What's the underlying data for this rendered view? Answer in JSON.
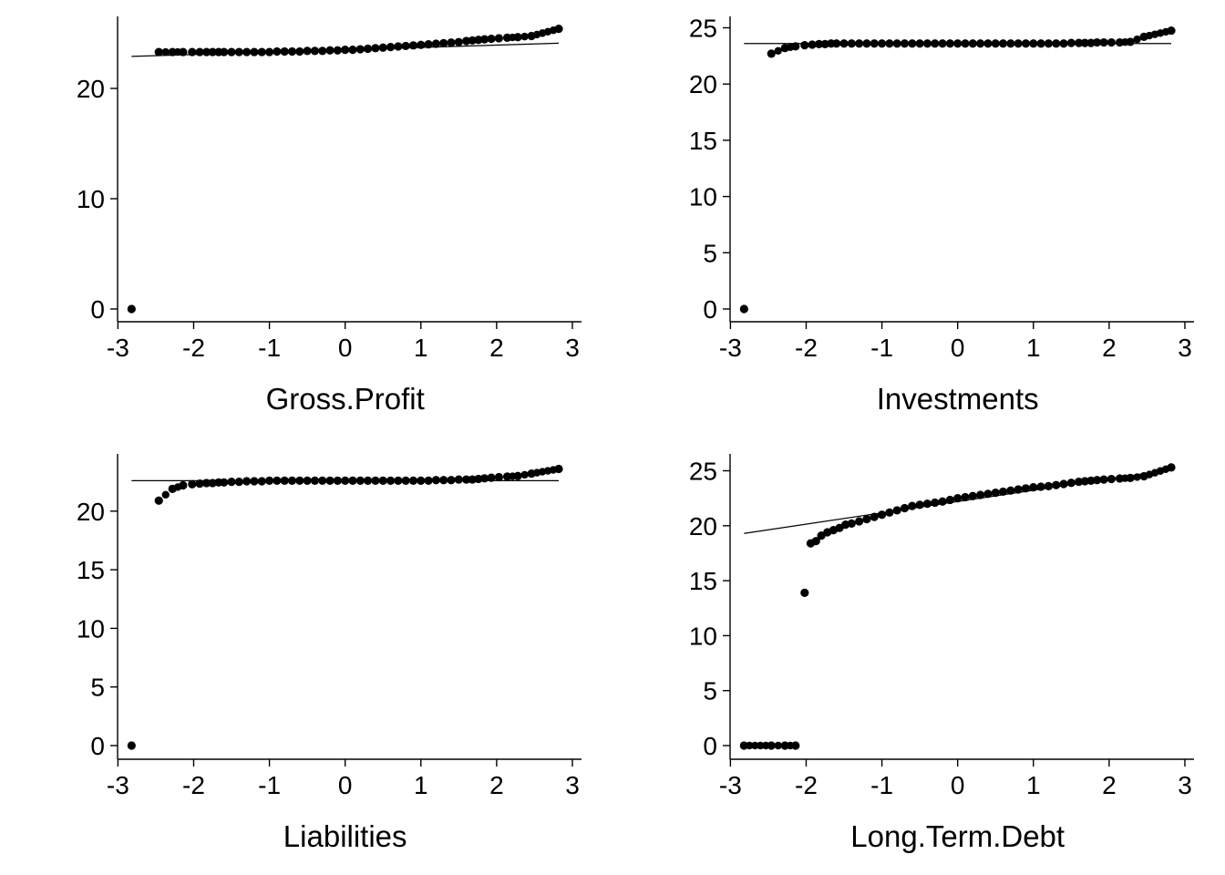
{
  "chart_data": [
    {
      "type": "scatter",
      "xlabel": "Gross.Profit",
      "ylabel": "",
      "xlim": [
        -2.95,
        3.0
      ],
      "ylim": [
        -1.2,
        26.8
      ],
      "xticks": [
        "-3",
        "-2",
        "-1",
        "0",
        "1",
        "2",
        "3"
      ],
      "yticks": [
        "0",
        "10",
        "20"
      ],
      "xtick_values": [
        -3,
        -2,
        -1,
        0,
        1,
        2,
        3
      ],
      "ytick_values": [
        0,
        10,
        20
      ],
      "reference_line": [
        [
          -2.82,
          22.9
        ],
        [
          2.82,
          24.1
        ]
      ],
      "points": [
        [
          -2.82,
          0.0
        ],
        [
          -2.46,
          23.3
        ],
        [
          -2.28,
          23.3
        ],
        [
          -2.14,
          23.3
        ],
        [
          -2.02,
          23.3
        ],
        [
          -1.92,
          23.3
        ],
        [
          -1.83,
          23.3
        ],
        [
          -1.75,
          23.3
        ],
        [
          -1.67,
          23.3
        ],
        [
          -1.6,
          23.3
        ],
        [
          -1.5,
          23.3
        ],
        [
          -1.4,
          23.3
        ],
        [
          -1.3,
          23.3
        ],
        [
          -1.2,
          23.3
        ],
        [
          -1.1,
          23.3
        ],
        [
          -1.0,
          23.3
        ],
        [
          -0.9,
          23.35
        ],
        [
          -0.8,
          23.35
        ],
        [
          -0.7,
          23.35
        ],
        [
          -0.6,
          23.35
        ],
        [
          -0.5,
          23.4
        ],
        [
          -0.4,
          23.4
        ],
        [
          -0.3,
          23.4
        ],
        [
          -0.2,
          23.45
        ],
        [
          -0.1,
          23.45
        ],
        [
          0.0,
          23.5
        ],
        [
          0.1,
          23.5
        ],
        [
          0.2,
          23.55
        ],
        [
          0.3,
          23.6
        ],
        [
          0.4,
          23.65
        ],
        [
          0.5,
          23.7
        ],
        [
          0.6,
          23.75
        ],
        [
          0.7,
          23.8
        ],
        [
          0.8,
          23.85
        ],
        [
          0.9,
          23.9
        ],
        [
          1.0,
          23.95
        ],
        [
          1.1,
          24.0
        ],
        [
          1.2,
          24.05
        ],
        [
          1.3,
          24.1
        ],
        [
          1.4,
          24.15
        ],
        [
          1.5,
          24.2
        ],
        [
          1.6,
          24.3
        ],
        [
          1.68,
          24.35
        ],
        [
          1.76,
          24.4
        ],
        [
          1.84,
          24.45
        ],
        [
          1.93,
          24.5
        ],
        [
          2.03,
          24.55
        ],
        [
          2.14,
          24.6
        ],
        [
          2.28,
          24.65
        ],
        [
          2.46,
          24.75
        ],
        [
          2.82,
          25.4
        ]
      ]
    },
    {
      "type": "scatter",
      "xlabel": "Investments",
      "ylabel": "",
      "xlim": [
        -2.95,
        3.0
      ],
      "ylim": [
        -1.2,
        26.0
      ],
      "xticks": [
        "-3",
        "-2",
        "-1",
        "0",
        "1",
        "2",
        "3"
      ],
      "yticks": [
        "0",
        "5",
        "10",
        "15",
        "20",
        "25"
      ],
      "xtick_values": [
        -3,
        -2,
        -1,
        0,
        1,
        2,
        3
      ],
      "ytick_values": [
        0,
        5,
        10,
        15,
        20,
        25
      ],
      "reference_line": [
        [
          -2.82,
          23.6
        ],
        [
          2.82,
          23.6
        ]
      ],
      "points": [
        [
          -2.82,
          0.0
        ],
        [
          -2.46,
          22.7
        ],
        [
          -2.28,
          23.2
        ],
        [
          -2.14,
          23.35
        ],
        [
          -2.02,
          23.45
        ],
        [
          -1.92,
          23.5
        ],
        [
          -1.83,
          23.55
        ],
        [
          -1.75,
          23.55
        ],
        [
          -1.67,
          23.6
        ],
        [
          -1.6,
          23.6
        ],
        [
          -1.5,
          23.6
        ],
        [
          -1.4,
          23.6
        ],
        [
          -1.3,
          23.6
        ],
        [
          -1.2,
          23.6
        ],
        [
          -1.1,
          23.6
        ],
        [
          -1.0,
          23.6
        ],
        [
          -0.9,
          23.6
        ],
        [
          -0.8,
          23.6
        ],
        [
          -0.7,
          23.6
        ],
        [
          -0.6,
          23.6
        ],
        [
          -0.5,
          23.6
        ],
        [
          -0.4,
          23.6
        ],
        [
          -0.3,
          23.6
        ],
        [
          -0.2,
          23.6
        ],
        [
          -0.1,
          23.6
        ],
        [
          0.0,
          23.6
        ],
        [
          0.1,
          23.6
        ],
        [
          0.2,
          23.6
        ],
        [
          0.3,
          23.6
        ],
        [
          0.4,
          23.6
        ],
        [
          0.5,
          23.6
        ],
        [
          0.6,
          23.6
        ],
        [
          0.7,
          23.6
        ],
        [
          0.8,
          23.6
        ],
        [
          0.9,
          23.6
        ],
        [
          1.0,
          23.6
        ],
        [
          1.1,
          23.6
        ],
        [
          1.2,
          23.6
        ],
        [
          1.3,
          23.6
        ],
        [
          1.4,
          23.6
        ],
        [
          1.5,
          23.65
        ],
        [
          1.6,
          23.65
        ],
        [
          1.68,
          23.65
        ],
        [
          1.76,
          23.65
        ],
        [
          1.84,
          23.7
        ],
        [
          1.93,
          23.7
        ],
        [
          2.03,
          23.7
        ],
        [
          2.14,
          23.7
        ],
        [
          2.28,
          23.75
        ],
        [
          2.46,
          24.2
        ],
        [
          2.82,
          24.75
        ]
      ]
    },
    {
      "type": "scatter",
      "xlabel": "Liabilities",
      "ylabel": "",
      "xlim": [
        -2.95,
        3.0
      ],
      "ylim": [
        -1.1,
        24.6
      ],
      "xticks": [
        "-3",
        "-2",
        "-1",
        "0",
        "1",
        "2",
        "3"
      ],
      "yticks": [
        "0",
        "5",
        "10",
        "15",
        "20"
      ],
      "xtick_values": [
        -3,
        -2,
        -1,
        0,
        1,
        2,
        3
      ],
      "ytick_values": [
        0,
        5,
        10,
        15,
        20
      ],
      "reference_line": [
        [
          -2.82,
          22.6
        ],
        [
          2.82,
          22.6
        ]
      ],
      "points": [
        [
          -2.82,
          0.0
        ],
        [
          -2.46,
          20.9
        ],
        [
          -2.28,
          21.9
        ],
        [
          -2.14,
          22.2
        ],
        [
          -2.02,
          22.3
        ],
        [
          -1.92,
          22.35
        ],
        [
          -1.83,
          22.4
        ],
        [
          -1.75,
          22.4
        ],
        [
          -1.67,
          22.45
        ],
        [
          -1.6,
          22.45
        ],
        [
          -1.5,
          22.5
        ],
        [
          -1.4,
          22.5
        ],
        [
          -1.3,
          22.55
        ],
        [
          -1.2,
          22.55
        ],
        [
          -1.1,
          22.55
        ],
        [
          -1.0,
          22.6
        ],
        [
          -0.9,
          22.6
        ],
        [
          -0.8,
          22.6
        ],
        [
          -0.7,
          22.6
        ],
        [
          -0.6,
          22.6
        ],
        [
          -0.5,
          22.6
        ],
        [
          -0.4,
          22.6
        ],
        [
          -0.3,
          22.6
        ],
        [
          -0.2,
          22.6
        ],
        [
          -0.1,
          22.6
        ],
        [
          0.0,
          22.6
        ],
        [
          0.1,
          22.6
        ],
        [
          0.2,
          22.6
        ],
        [
          0.3,
          22.6
        ],
        [
          0.4,
          22.6
        ],
        [
          0.5,
          22.6
        ],
        [
          0.6,
          22.6
        ],
        [
          0.7,
          22.6
        ],
        [
          0.8,
          22.6
        ],
        [
          0.9,
          22.6
        ],
        [
          1.0,
          22.6
        ],
        [
          1.1,
          22.6
        ],
        [
          1.2,
          22.65
        ],
        [
          1.3,
          22.65
        ],
        [
          1.4,
          22.65
        ],
        [
          1.5,
          22.7
        ],
        [
          1.6,
          22.7
        ],
        [
          1.68,
          22.7
        ],
        [
          1.76,
          22.75
        ],
        [
          1.84,
          22.8
        ],
        [
          1.93,
          22.85
        ],
        [
          2.03,
          22.9
        ],
        [
          2.14,
          22.95
        ],
        [
          2.28,
          23.0
        ],
        [
          2.46,
          23.2
        ],
        [
          2.82,
          23.6
        ]
      ]
    },
    {
      "type": "scatter",
      "xlabel": "Long.Term.Debt",
      "ylabel": "",
      "xlim": [
        -2.95,
        3.0
      ],
      "ylim": [
        -1.2,
        26.2
      ],
      "xticks": [
        "-3",
        "-2",
        "-1",
        "0",
        "1",
        "2",
        "3"
      ],
      "yticks": [
        "0",
        "5",
        "10",
        "15",
        "20",
        "25"
      ],
      "xtick_values": [
        -3,
        -2,
        -1,
        0,
        1,
        2,
        3
      ],
      "ytick_values": [
        0,
        5,
        10,
        15,
        20,
        25
      ],
      "reference_line": [
        [
          -2.82,
          19.3
        ],
        [
          2.82,
          25.1
        ]
      ],
      "points": [
        [
          -2.82,
          0.0
        ],
        [
          -2.46,
          0.0
        ],
        [
          -2.28,
          0.0
        ],
        [
          -2.14,
          0.0
        ],
        [
          -2.02,
          13.9
        ],
        [
          -1.94,
          18.4
        ],
        [
          -1.87,
          18.6
        ],
        [
          -1.8,
          19.1
        ],
        [
          -1.72,
          19.4
        ],
        [
          -1.64,
          19.6
        ],
        [
          -1.56,
          19.8
        ],
        [
          -1.48,
          20.1
        ],
        [
          -1.4,
          20.2
        ],
        [
          -1.3,
          20.4
        ],
        [
          -1.2,
          20.6
        ],
        [
          -1.1,
          20.8
        ],
        [
          -1.0,
          21.0
        ],
        [
          -0.9,
          21.2
        ],
        [
          -0.8,
          21.4
        ],
        [
          -0.7,
          21.6
        ],
        [
          -0.6,
          21.8
        ],
        [
          -0.5,
          21.9
        ],
        [
          -0.4,
          22.0
        ],
        [
          -0.3,
          22.1
        ],
        [
          -0.2,
          22.2
        ],
        [
          -0.1,
          22.35
        ],
        [
          0.0,
          22.5
        ],
        [
          0.1,
          22.6
        ],
        [
          0.2,
          22.7
        ],
        [
          0.3,
          22.8
        ],
        [
          0.4,
          22.9
        ],
        [
          0.5,
          23.0
        ],
        [
          0.6,
          23.1
        ],
        [
          0.7,
          23.2
        ],
        [
          0.8,
          23.3
        ],
        [
          0.9,
          23.4
        ],
        [
          1.0,
          23.5
        ],
        [
          1.1,
          23.55
        ],
        [
          1.2,
          23.6
        ],
        [
          1.3,
          23.7
        ],
        [
          1.4,
          23.8
        ],
        [
          1.5,
          23.9
        ],
        [
          1.6,
          24.0
        ],
        [
          1.68,
          24.05
        ],
        [
          1.76,
          24.1
        ],
        [
          1.84,
          24.15
        ],
        [
          1.93,
          24.2
        ],
        [
          2.03,
          24.25
        ],
        [
          2.14,
          24.3
        ],
        [
          2.28,
          24.35
        ],
        [
          2.46,
          24.5
        ],
        [
          2.82,
          25.3
        ]
      ]
    }
  ]
}
